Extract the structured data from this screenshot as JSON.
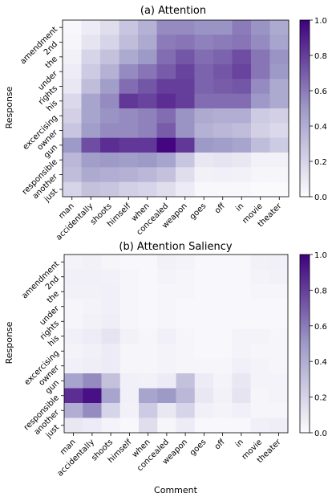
{
  "chart_data": [
    {
      "type": "heatmap",
      "title": "(a) Attention",
      "xlabel": "",
      "ylabel": "Response",
      "x_categories": [
        "man",
        "accidentally",
        "shoots",
        "himself",
        "when",
        "concealed",
        "weapon",
        "goes",
        "off",
        "in",
        "movie",
        "theater"
      ],
      "y_categories": [
        "amendment",
        "2nd",
        "the",
        "under",
        "rights",
        "his",
        "excercising",
        "owner",
        "gun",
        "responsible",
        "another",
        "just"
      ],
      "values": [
        [
          0.02,
          0.08,
          0.15,
          0.28,
          0.38,
          0.55,
          0.55,
          0.52,
          0.52,
          0.6,
          0.52,
          0.42
        ],
        [
          0.03,
          0.12,
          0.2,
          0.32,
          0.42,
          0.6,
          0.62,
          0.58,
          0.6,
          0.62,
          0.55,
          0.45
        ],
        [
          0.05,
          0.2,
          0.3,
          0.42,
          0.5,
          0.65,
          0.72,
          0.65,
          0.68,
          0.75,
          0.62,
          0.52
        ],
        [
          0.08,
          0.25,
          0.38,
          0.55,
          0.62,
          0.7,
          0.78,
          0.68,
          0.72,
          0.78,
          0.62,
          0.5
        ],
        [
          0.1,
          0.32,
          0.48,
          0.65,
          0.72,
          0.8,
          0.8,
          0.68,
          0.7,
          0.72,
          0.55,
          0.42
        ],
        [
          0.18,
          0.45,
          0.55,
          0.82,
          0.78,
          0.85,
          0.8,
          0.65,
          0.65,
          0.65,
          0.5,
          0.42
        ],
        [
          0.22,
          0.45,
          0.52,
          0.55,
          0.58,
          0.65,
          0.52,
          0.42,
          0.4,
          0.4,
          0.25,
          0.22
        ],
        [
          0.28,
          0.48,
          0.55,
          0.55,
          0.58,
          0.7,
          0.52,
          0.38,
          0.35,
          0.32,
          0.22,
          0.18
        ],
        [
          0.5,
          0.75,
          0.85,
          0.82,
          0.82,
          0.98,
          0.82,
          0.5,
          0.48,
          0.45,
          0.32,
          0.25
        ],
        [
          0.35,
          0.48,
          0.5,
          0.48,
          0.5,
          0.45,
          0.28,
          0.1,
          0.12,
          0.1,
          0.05,
          0.05
        ],
        [
          0.32,
          0.42,
          0.4,
          0.38,
          0.35,
          0.3,
          0.15,
          0.05,
          0.06,
          0.05,
          0.03,
          0.03
        ],
        [
          0.2,
          0.3,
          0.28,
          0.22,
          0.2,
          0.15,
          0.08,
          0.02,
          0.02,
          0.02,
          0.01,
          0.01
        ]
      ],
      "colorbar": {
        "min": 0.0,
        "max": 1.0,
        "ticks": [
          "0.0",
          "0.2",
          "0.4",
          "0.6",
          "0.8",
          "1.0"
        ]
      },
      "colormap": {
        "low": "#fcfbfd",
        "high": "#3f007d"
      }
    },
    {
      "type": "heatmap",
      "title": "(b) Attention Saliency",
      "xlabel": "Comment",
      "ylabel": "Response",
      "x_categories": [
        "man",
        "accidentally",
        "shoots",
        "himself",
        "when",
        "concealed",
        "weapon",
        "goes",
        "off",
        "in",
        "movie",
        "theater"
      ],
      "y_categories": [
        "amendment",
        "2nd",
        "the",
        "under",
        "rights",
        "his",
        "excercising",
        "owner",
        "gun",
        "responsible",
        "another",
        "just"
      ],
      "values": [
        [
          0.04,
          0.05,
          0.03,
          0.02,
          0.02,
          0.05,
          0.04,
          0.02,
          0.02,
          0.02,
          0.05,
          0.06
        ],
        [
          0.06,
          0.06,
          0.05,
          0.03,
          0.02,
          0.04,
          0.03,
          0.02,
          0.02,
          0.02,
          0.04,
          0.05
        ],
        [
          0.05,
          0.05,
          0.06,
          0.03,
          0.02,
          0.03,
          0.03,
          0.02,
          0.02,
          0.02,
          0.03,
          0.03
        ],
        [
          0.03,
          0.04,
          0.06,
          0.03,
          0.02,
          0.03,
          0.02,
          0.02,
          0.02,
          0.02,
          0.02,
          0.02
        ],
        [
          0.03,
          0.05,
          0.07,
          0.03,
          0.02,
          0.03,
          0.02,
          0.02,
          0.02,
          0.02,
          0.02,
          0.02
        ],
        [
          0.06,
          0.08,
          0.12,
          0.05,
          0.03,
          0.06,
          0.03,
          0.02,
          0.02,
          0.04,
          0.04,
          0.03
        ],
        [
          0.04,
          0.06,
          0.08,
          0.03,
          0.03,
          0.04,
          0.03,
          0.02,
          0.02,
          0.04,
          0.03,
          0.03
        ],
        [
          0.06,
          0.07,
          0.08,
          0.03,
          0.03,
          0.04,
          0.03,
          0.03,
          0.03,
          0.06,
          0.04,
          0.03
        ],
        [
          0.45,
          0.55,
          0.3,
          0.06,
          0.05,
          0.08,
          0.3,
          0.08,
          0.04,
          0.1,
          0.04,
          0.04
        ],
        [
          0.85,
          0.95,
          0.45,
          0.06,
          0.45,
          0.5,
          0.35,
          0.1,
          0.05,
          0.12,
          0.03,
          0.04
        ],
        [
          0.4,
          0.55,
          0.2,
          0.05,
          0.25,
          0.1,
          0.2,
          0.06,
          0.04,
          0.06,
          0.03,
          0.03
        ],
        [
          0.1,
          0.08,
          0.04,
          0.02,
          0.15,
          0.03,
          0.08,
          0.02,
          0.02,
          0.02,
          0.06,
          0.07
        ]
      ],
      "colorbar": {
        "min": 0.0,
        "max": 1.0,
        "ticks": [
          "0.0",
          "0.2",
          "0.4",
          "0.6",
          "0.8",
          "1.0"
        ]
      },
      "colormap": {
        "low": "#fcfbfd",
        "high": "#3f007d"
      }
    }
  ]
}
